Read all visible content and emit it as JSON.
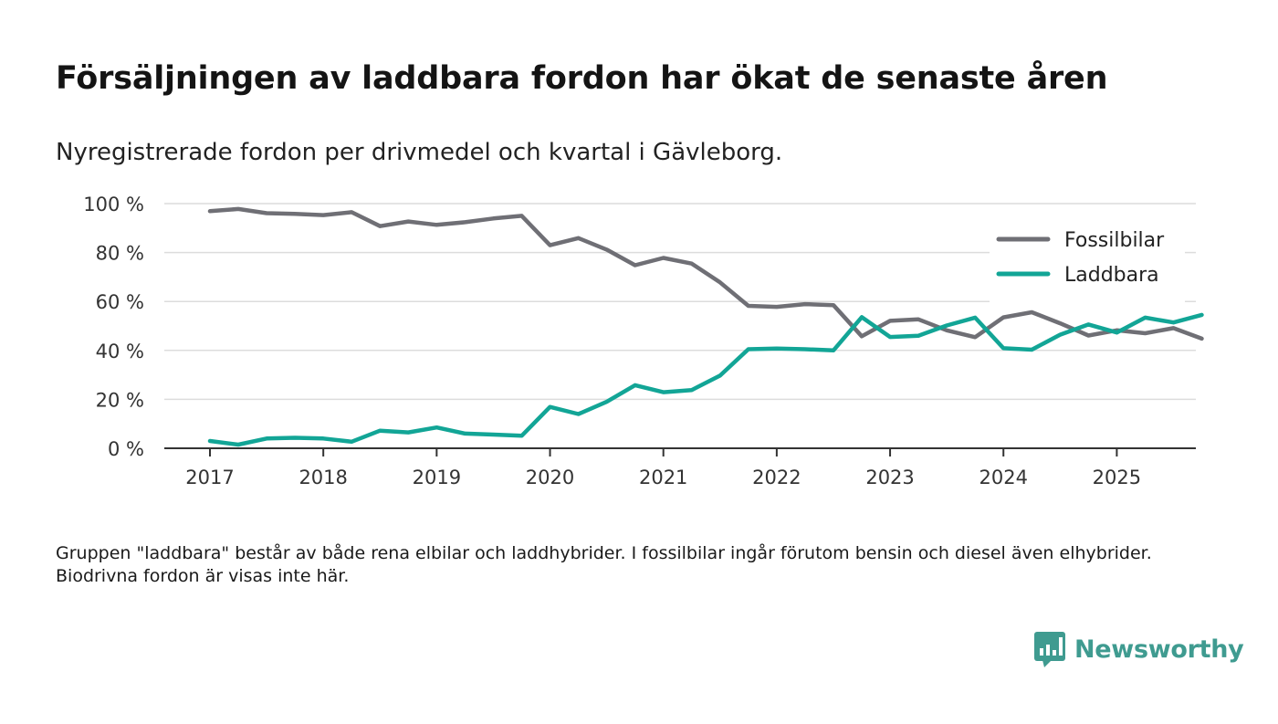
{
  "title": "Försäljningen av laddbara fordon har ökat de senaste åren",
  "subtitle": "Nyregistrerade fordon per drivmedel och kvartal i Gävleborg.",
  "note": "Gruppen \"laddbara\" består av både rena elbilar och laddhybrider. I fossilbilar ingår förutom bensin och diesel även elhybrider. Biodrivna fordon är visas inte här.",
  "brand": {
    "name": "Newsworthy",
    "icon": "newsworthy-logo-icon",
    "color": "#3f9b90"
  },
  "chart_data": {
    "type": "line",
    "xlabel": "",
    "ylabel": "",
    "ylim": [
      0,
      100
    ],
    "yticks": [
      0,
      20,
      40,
      60,
      80,
      100
    ],
    "ytick_labels": [
      "0 %",
      "20 %",
      "40 %",
      "60 %",
      "80 %",
      "100 %"
    ],
    "xlim": [
      2017,
      2026.1
    ],
    "xticks": [
      2017,
      2018,
      2019,
      2020,
      2021,
      2022,
      2023,
      2024,
      2025
    ],
    "xtick_labels": [
      "2017",
      "2018",
      "2019",
      "2020",
      "2021",
      "2022",
      "2023",
      "2024",
      "2025"
    ],
    "grid": true,
    "legend": "top-right",
    "x": [
      2017.0,
      2017.25,
      2017.5,
      2017.75,
      2018.0,
      2018.25,
      2018.5,
      2018.75,
      2019.0,
      2019.25,
      2019.5,
      2019.75,
      2020.0,
      2020.25,
      2020.5,
      2020.75,
      2021.0,
      2021.25,
      2021.5,
      2021.75,
      2022.0,
      2022.25,
      2022.5,
      2022.75,
      2023.0,
      2023.25,
      2023.5,
      2023.75,
      2024.0,
      2024.25,
      2024.5,
      2024.75,
      2025.0,
      2025.25,
      2025.5,
      2025.75
    ],
    "series": [
      {
        "name": "Fossilbilar",
        "color": "#6f6f75",
        "values": [
          96.9,
          97.8,
          96.1,
          95.8,
          95.3,
          96.5,
          90.8,
          92.7,
          91.3,
          92.4,
          93.9,
          95.0,
          83.0,
          85.9,
          81.2,
          74.8,
          77.8,
          75.5,
          67.8,
          58.2,
          57.8,
          58.9,
          58.5,
          45.8,
          52.1,
          52.7,
          48.2,
          45.4,
          53.5,
          55.6,
          51.1,
          46.1,
          48.2,
          47.0,
          49.1,
          44.8
        ]
      },
      {
        "name": "Laddbara",
        "color": "#12a596",
        "values": [
          3.0,
          1.5,
          4.0,
          4.3,
          4.0,
          2.7,
          7.2,
          6.5,
          8.5,
          6.0,
          5.6,
          5.1,
          16.9,
          14.0,
          19.0,
          25.8,
          22.9,
          23.8,
          29.7,
          40.5,
          40.8,
          40.5,
          40.0,
          53.6,
          45.5,
          46.0,
          50.2,
          53.4,
          40.9,
          40.3,
          46.4,
          50.6,
          47.3,
          53.4,
          51.4,
          54.5
        ]
      }
    ]
  }
}
